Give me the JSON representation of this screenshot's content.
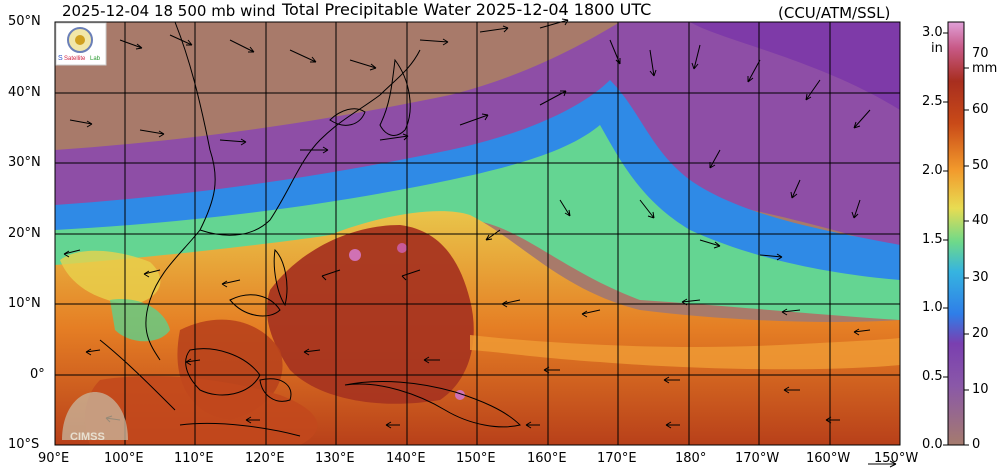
{
  "header": {
    "left": "2025-12-04 18 500 mb wind",
    "center": "Total Precipitable Water  2025-12-04 1800 UTC",
    "right": "(CCU/ATM/SSL)"
  },
  "logos": {
    "top": "SSL Satellite Lab",
    "bottom": "CIMSS"
  },
  "map": {
    "lat_labels": [
      "50°N",
      "40°N",
      "30°N",
      "20°N",
      "10°N",
      "0°",
      "10°S"
    ],
    "lon_labels": [
      "90°E",
      "100°E",
      "110°E",
      "120°E",
      "130°E",
      "140°E",
      "150°E",
      "160°E",
      "170°E",
      "180°",
      "170°W",
      "160°W",
      "150°W"
    ]
  },
  "colorbar": {
    "inches_unit": "in",
    "mm_unit": "mm",
    "inches_ticks": [
      "3.0",
      "2.5",
      "2.0",
      "1.5",
      "1.0",
      "0.5",
      "0.0"
    ],
    "mm_ticks": [
      "70",
      "60",
      "50",
      "40",
      "30",
      "20",
      "10",
      "0"
    ],
    "colors": [
      "#a57b6e",
      "#9b4aa0",
      "#2f7ee8",
      "#5fd08a",
      "#e6d24a",
      "#f09a2a",
      "#d9651c",
      "#b8401a",
      "#c84a6a",
      "#d980c8"
    ]
  }
}
